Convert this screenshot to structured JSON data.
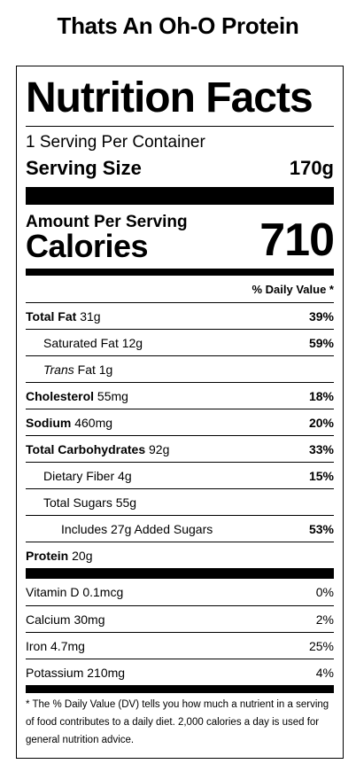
{
  "title": "Thats An Oh-O Protein",
  "heading": "Nutrition Facts",
  "servings_per_container": "1 Serving Per Container",
  "serving_size_label": "Serving Size",
  "serving_size_value": "170g",
  "amount_per_serving": "Amount Per Serving",
  "calories_label": "Calories",
  "calories_value": "710",
  "dv_header": "% Daily Value *",
  "nutrients": {
    "total_fat": {
      "name": "Total Fat",
      "amount": "31g",
      "dv": "39%"
    },
    "saturated_fat": {
      "name": "Saturated Fat",
      "amount": "12g",
      "dv": "59%"
    },
    "trans_fat": {
      "name_italic": "Trans",
      "name_rest": "Fat",
      "amount": "1g"
    },
    "cholesterol": {
      "name": "Cholesterol",
      "amount": "55mg",
      "dv": "18%"
    },
    "sodium": {
      "name": "Sodium",
      "amount": "460mg",
      "dv": "20%"
    },
    "total_carbs": {
      "name": "Total Carbohydrates",
      "amount": "92g",
      "dv": "33%"
    },
    "dietary_fiber": {
      "name": "Dietary Fiber",
      "amount": "4g",
      "dv": "15%"
    },
    "total_sugars": {
      "name": "Total Sugars",
      "amount": "55g"
    },
    "added_sugars": {
      "text": "Includes 27g Added Sugars",
      "dv": "53%"
    },
    "protein": {
      "name": "Protein",
      "amount": "20g"
    }
  },
  "vitamins": {
    "vitamin_d": {
      "name": "Vitamin D",
      "amount": "0.1mcg",
      "dv": "0%"
    },
    "calcium": {
      "name": "Calcium",
      "amount": "30mg",
      "dv": "2%"
    },
    "iron": {
      "name": "Iron",
      "amount": "4.7mg",
      "dv": "25%"
    },
    "potassium": {
      "name": "Potassium",
      "amount": "210mg",
      "dv": "4%"
    }
  },
  "footnote": "* The % Daily Value (DV) tells you how much a nutrient in a serving of food contributes to a daily diet. 2,000 calories a day is used for general nutrition advice."
}
